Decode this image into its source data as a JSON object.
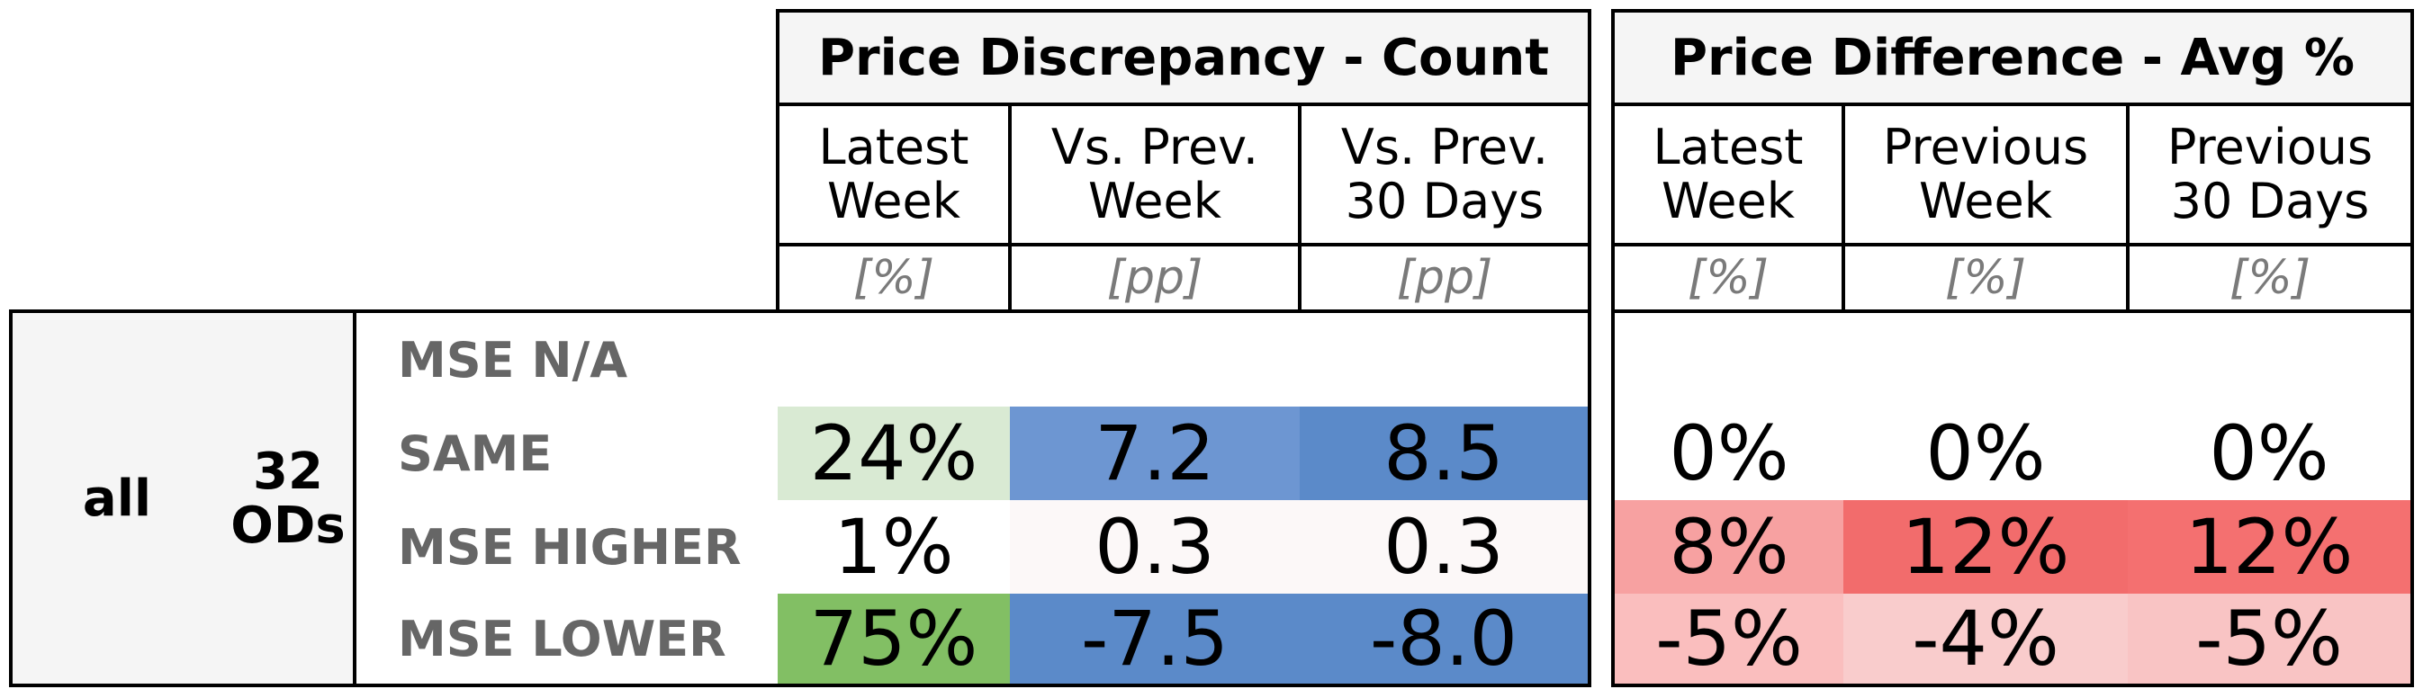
{
  "chart_data": {
    "type": "table",
    "segment": "all",
    "od_count_label": "32\nODs",
    "groups": [
      {
        "title": "Price Discrepancy - Count",
        "columns": [
          {
            "label": "Latest\nWeek",
            "unit": "[%]"
          },
          {
            "label": "Vs. Prev.\nWeek",
            "unit": "[pp]"
          },
          {
            "label": "Vs. Prev.\n30 Days",
            "unit": "[pp]"
          }
        ]
      },
      {
        "title": "Price Difference - Avg %",
        "columns": [
          {
            "label": "Latest\nWeek",
            "unit": "[%]"
          },
          {
            "label": "Previous\nWeek",
            "unit": "[%]"
          },
          {
            "label": "Previous\n30 Days",
            "unit": "[%]"
          }
        ]
      }
    ],
    "rows": [
      {
        "label": "MSE N/A",
        "values": [
          "",
          "",
          "",
          "",
          "",
          ""
        ]
      },
      {
        "label": "SAME",
        "values": [
          "24%",
          "7.2",
          "8.5",
          "0%",
          "0%",
          "0%"
        ]
      },
      {
        "label": "MSE HIGHER",
        "values": [
          "1%",
          "0.3",
          "0.3",
          "8%",
          "12%",
          "12%"
        ]
      },
      {
        "label": "MSE LOWER",
        "values": [
          "75%",
          "-7.5",
          "-8.0",
          "-5%",
          "-4%",
          "-5%"
        ]
      }
    ],
    "cell_colors": [
      [
        "#ffffff",
        "#ffffff",
        "#ffffff",
        "#ffffff",
        "#ffffff",
        "#ffffff"
      ],
      [
        "#d9ead3",
        "#6d96d2",
        "#5b8ac9",
        "#ffffff",
        "#ffffff",
        "#ffffff"
      ],
      [
        "#ffffff",
        "#fcf8f8",
        "#fcf8f8",
        "#f7a1a1",
        "#f26c6c",
        "#f47070"
      ],
      [
        "#82bf64",
        "#5b8ac9",
        "#5b8ac9",
        "#fabebe",
        "#f9cccc",
        "#f9c4c4"
      ]
    ]
  }
}
